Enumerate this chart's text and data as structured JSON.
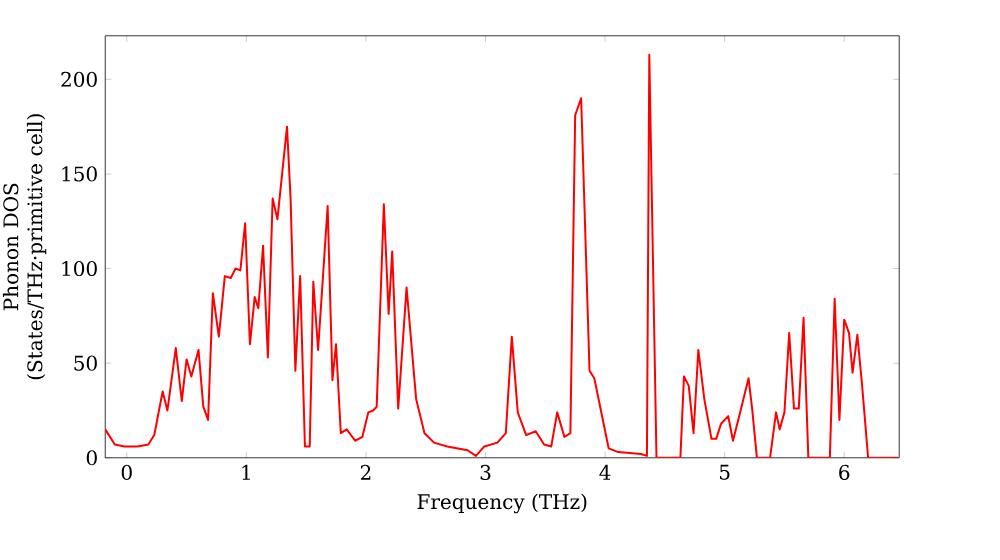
{
  "chart_data": {
    "type": "line",
    "xlabel": "Frequency (THz)",
    "ylabel": "Phonon DOS (States/THz·primitive cell)",
    "x": [
      -0.18,
      -0.1,
      -0.02,
      0.09,
      0.18,
      0.23,
      0.3,
      0.34,
      0.41,
      0.46,
      0.5,
      0.54,
      0.6,
      0.64,
      0.68,
      0.72,
      0.77,
      0.82,
      0.87,
      0.91,
      0.95,
      0.99,
      1.03,
      1.07,
      1.1,
      1.14,
      1.18,
      1.22,
      1.26,
      1.34,
      1.37,
      1.41,
      1.45,
      1.49,
      1.53,
      1.56,
      1.6,
      1.68,
      1.72,
      1.75,
      1.79,
      1.84,
      1.91,
      1.97,
      2.02,
      2.06,
      2.09,
      2.15,
      2.19,
      2.22,
      2.27,
      2.34,
      2.42,
      2.49,
      2.57,
      2.68,
      2.85,
      2.92,
      2.99,
      3.1,
      3.17,
      3.22,
      3.27,
      3.34,
      3.42,
      3.49,
      3.55,
      3.6,
      3.66,
      3.71,
      3.75,
      3.8,
      3.87,
      3.91,
      4.03,
      4.11,
      4.3,
      4.35,
      4.37,
      4.43,
      4.63,
      4.66,
      4.7,
      4.74,
      4.78,
      4.83,
      4.89,
      4.93,
      4.97,
      5.03,
      5.07,
      5.13,
      5.2,
      5.23,
      5.27,
      5.38,
      5.43,
      5.46,
      5.5,
      5.54,
      5.58,
      5.62,
      5.66,
      5.7,
      5.88,
      5.92,
      5.96,
      6.0,
      6.04,
      6.07,
      6.11,
      6.15,
      6.2,
      6.45
    ],
    "values": [
      15,
      7,
      6,
      6,
      7,
      12,
      35,
      25,
      58,
      30,
      52,
      43,
      57,
      27,
      20,
      87,
      64,
      96,
      95,
      100,
      99,
      124,
      60,
      85,
      79,
      112,
      53,
      137,
      126,
      175,
      137,
      46,
      96,
      6,
      6,
      93,
      57,
      133,
      41,
      60,
      13,
      15,
      9,
      11,
      24,
      25,
      27,
      134,
      76,
      109,
      26,
      90,
      31,
      13,
      8,
      6,
      4,
      1,
      6,
      8,
      13,
      64,
      24,
      12,
      14,
      7,
      6,
      24,
      11,
      13,
      181,
      190,
      46,
      42,
      5,
      3,
      2,
      1,
      213,
      0,
      0,
      43,
      38,
      13,
      57,
      31,
      10,
      10,
      18,
      22,
      9,
      24,
      42,
      26,
      0,
      0,
      24,
      15,
      24,
      66,
      26,
      26,
      74,
      0,
      0,
      84,
      20,
      73,
      66,
      45,
      65,
      38,
      0,
      0
    ],
    "color": "#ff0000",
    "xlim": [
      -0.18,
      6.46
    ],
    "ylim": [
      0,
      223
    ],
    "xticks": [
      0,
      1,
      2,
      3,
      4,
      5,
      6
    ],
    "yticks": [
      0,
      50,
      100,
      150,
      200
    ]
  }
}
